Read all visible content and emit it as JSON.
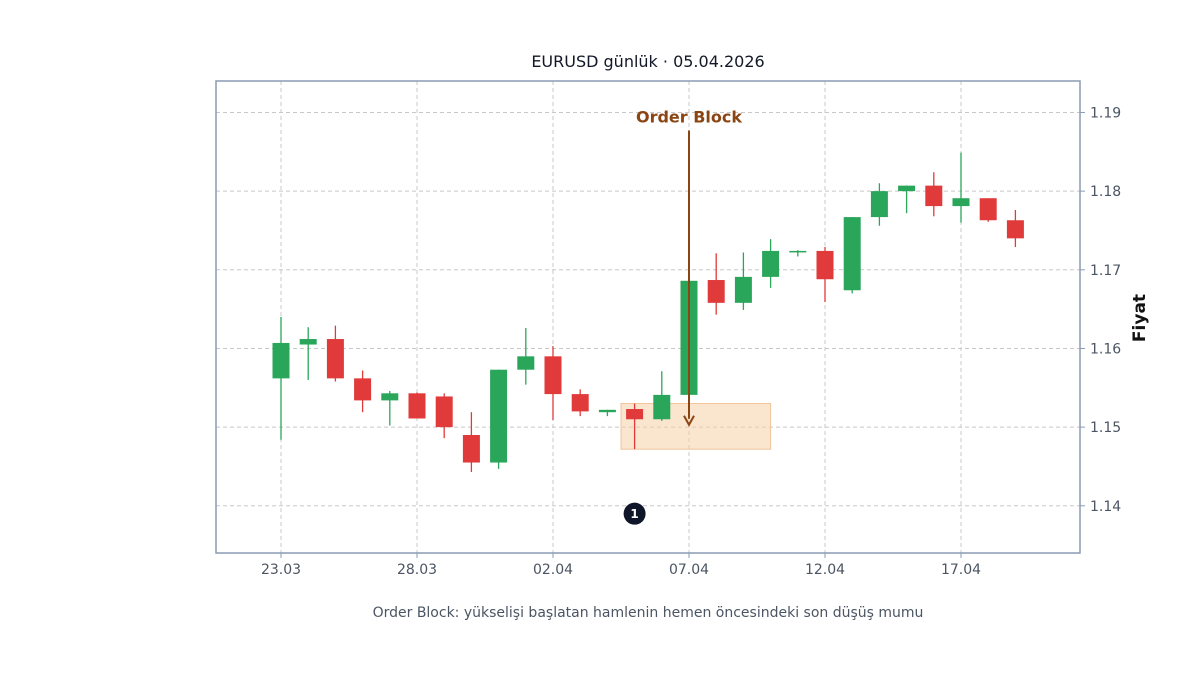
{
  "colors": {
    "bull": "#2aa65a",
    "bear": "#e03a3a",
    "annotation": "#8b4513",
    "zone_fill": "#f5cfa8",
    "zone_stroke": "#f0c49a",
    "frame": "#8a9bb4",
    "grid": "#c8c8c8",
    "marker": "#0f1629"
  },
  "chart_data": {
    "type": "candlestick",
    "title": "EURUSD günlük · 05.04.2026",
    "ylabel": "Fiyat",
    "caption": "Order Block: yükselişi başlatan hamlenin hemen öncesindeki son düşüş mumu",
    "ylim": [
      1.134,
      1.194
    ],
    "y_ticks": [
      "1.14",
      "1.15",
      "1.16",
      "1.17",
      "1.18",
      "1.19"
    ],
    "x_ticks": [
      "23.03",
      "28.03",
      "02.04",
      "07.04",
      "12.04",
      "17.04"
    ],
    "grid": true,
    "dates": [
      "23.03",
      "24.03",
      "25.03",
      "26.03",
      "27.03",
      "28.03",
      "29.03",
      "30.03",
      "31.03",
      "01.04",
      "02.04",
      "03.04",
      "04.04",
      "05.04",
      "06.04",
      "07.04",
      "08.04",
      "09.04",
      "10.04",
      "11.04",
      "12.04",
      "13.04",
      "14.04",
      "15.04",
      "16.04",
      "17.04",
      "18.04",
      "19.04"
    ],
    "candles": [
      {
        "o": 1.1562,
        "h": 1.164,
        "l": 1.1484,
        "c": 1.1607
      },
      {
        "o": 1.1605,
        "h": 1.1627,
        "l": 1.156,
        "c": 1.1612
      },
      {
        "o": 1.1612,
        "h": 1.1629,
        "l": 1.1558,
        "c": 1.1562
      },
      {
        "o": 1.1562,
        "h": 1.1572,
        "l": 1.1519,
        "c": 1.1534
      },
      {
        "o": 1.1534,
        "h": 1.1546,
        "l": 1.1502,
        "c": 1.1543
      },
      {
        "o": 1.1543,
        "h": 1.1544,
        "l": 1.1511,
        "c": 1.1511
      },
      {
        "o": 1.1539,
        "h": 1.1543,
        "l": 1.1486,
        "c": 1.15
      },
      {
        "o": 1.149,
        "h": 1.1519,
        "l": 1.1443,
        "c": 1.1455
      },
      {
        "o": 1.1455,
        "h": 1.1573,
        "l": 1.1447,
        "c": 1.1573
      },
      {
        "o": 1.1573,
        "h": 1.1626,
        "l": 1.1554,
        "c": 1.159
      },
      {
        "o": 1.159,
        "h": 1.1603,
        "l": 1.1509,
        "c": 1.1542
      },
      {
        "o": 1.1542,
        "h": 1.1548,
        "l": 1.1514,
        "c": 1.152
      },
      {
        "o": 1.1519,
        "h": 1.1522,
        "l": 1.1514,
        "c": 1.1522
      },
      {
        "o": 1.1523,
        "h": 1.153,
        "l": 1.1472,
        "c": 1.151
      },
      {
        "o": 1.151,
        "h": 1.1571,
        "l": 1.1508,
        "c": 1.1541
      },
      {
        "o": 1.1541,
        "h": 1.1686,
        "l": 1.1541,
        "c": 1.1686
      },
      {
        "o": 1.1687,
        "h": 1.1721,
        "l": 1.1643,
        "c": 1.1658
      },
      {
        "o": 1.1658,
        "h": 1.1722,
        "l": 1.1649,
        "c": 1.1691
      },
      {
        "o": 1.1691,
        "h": 1.1739,
        "l": 1.1677,
        "c": 1.1724
      },
      {
        "o": 1.1723,
        "h": 1.1725,
        "l": 1.1717,
        "c": 1.1724
      },
      {
        "o": 1.1724,
        "h": 1.1729,
        "l": 1.1659,
        "c": 1.1688
      },
      {
        "o": 1.1674,
        "h": 1.1767,
        "l": 1.167,
        "c": 1.1767
      },
      {
        "o": 1.1767,
        "h": 1.181,
        "l": 1.1756,
        "c": 1.18
      },
      {
        "o": 1.18,
        "h": 1.1807,
        "l": 1.1772,
        "c": 1.1807
      },
      {
        "o": 1.1807,
        "h": 1.1824,
        "l": 1.1768,
        "c": 1.1781
      },
      {
        "o": 1.1781,
        "h": 1.1849,
        "l": 1.176,
        "c": 1.1791
      },
      {
        "o": 1.1791,
        "h": 1.1791,
        "l": 1.1761,
        "c": 1.1763
      },
      {
        "o": 1.1763,
        "h": 1.1776,
        "l": 1.1729,
        "c": 1.174
      }
    ],
    "annotations": {
      "order_block_label": "Order Block",
      "arrow": {
        "from_price": 1.1877,
        "to_price": 1.1503,
        "index": 15
      },
      "zone": {
        "start_index": 12.5,
        "end_index": 18,
        "low": 1.1472,
        "high": 1.153
      },
      "marker": {
        "text": "1",
        "index": 13,
        "price": 1.139
      }
    }
  }
}
